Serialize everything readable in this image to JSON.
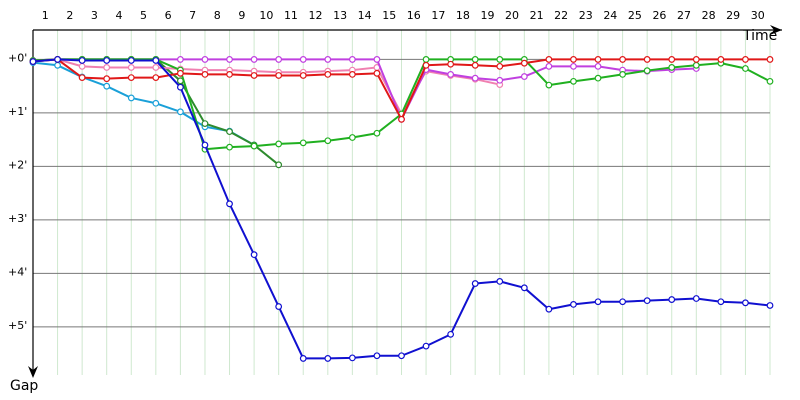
{
  "chart_data": {
    "type": "line",
    "x_label": "Time",
    "y_label": "Gap",
    "x": [
      0,
      1,
      2,
      3,
      4,
      5,
      6,
      7,
      8,
      9,
      10,
      11,
      12,
      13,
      14,
      15,
      16,
      17,
      18,
      19,
      20,
      21,
      22,
      23,
      24,
      25,
      26,
      27,
      28,
      29,
      30
    ],
    "xlim": [
      0,
      30
    ],
    "xticks": [
      1,
      2,
      3,
      4,
      5,
      6,
      7,
      8,
      9,
      10,
      11,
      12,
      13,
      14,
      15,
      16,
      17,
      18,
      19,
      20,
      21,
      22,
      23,
      24,
      25,
      26,
      27,
      28,
      29,
      30
    ],
    "ylim": [
      -0.55,
      5.9
    ],
    "yticks": [
      {
        "value": 0,
        "label": "+0'"
      },
      {
        "value": 1,
        "label": "+1'"
      },
      {
        "value": 2,
        "label": "+2'"
      },
      {
        "value": 3,
        "label": "+3'"
      },
      {
        "value": 4,
        "label": "+4'"
      },
      {
        "value": 5,
        "label": "+5'"
      }
    ],
    "y_inverted": true,
    "grid": true,
    "series": [
      {
        "color": "#1aa0d8",
        "values": [
          0.06,
          0.11,
          0.33,
          0.5,
          0.72,
          0.82,
          0.98,
          1.26,
          1.34,
          1.6,
          null,
          null,
          null,
          null,
          null,
          null,
          null,
          null,
          null,
          null,
          null,
          null,
          null,
          null,
          null,
          null,
          null,
          null,
          null,
          null,
          null
        ]
      },
      {
        "color": "#2e8b2e",
        "values": [
          0.02,
          0,
          0,
          0,
          0,
          0,
          0.4,
          1.2,
          1.35,
          1.6,
          1.97,
          null,
          null,
          null,
          null,
          null,
          null,
          null,
          null,
          null,
          null,
          null,
          null,
          null,
          null,
          null,
          null,
          null,
          null,
          null,
          null
        ]
      },
      {
        "color": "#f080b0",
        "values": [
          0.04,
          0,
          0.13,
          0.15,
          0.15,
          0.15,
          0.18,
          0.2,
          0.2,
          0.22,
          0.24,
          0.24,
          0.22,
          0.2,
          0.15,
          1.02,
          0.22,
          0.3,
          0.37,
          0.47,
          null,
          null,
          null,
          null,
          null,
          null,
          null,
          null,
          null,
          null,
          null
        ]
      },
      {
        "color": "#c040e0",
        "values": [
          0.02,
          0,
          0,
          0,
          0,
          0,
          0,
          0,
          0,
          0,
          0,
          0,
          0,
          0,
          0,
          1.12,
          0.19,
          0.28,
          0.35,
          0.39,
          0.32,
          0.13,
          0.13,
          0.13,
          0.2,
          0.22,
          0.19,
          0.17,
          null,
          null,
          null
        ]
      },
      {
        "color": "#20b020",
        "values": [
          0.02,
          0,
          0,
          0,
          0,
          0,
          0.2,
          1.68,
          1.64,
          1.62,
          1.58,
          1.56,
          1.52,
          1.46,
          1.38,
          1.02,
          0,
          0,
          0,
          0,
          0,
          0.48,
          0.41,
          0.35,
          0.28,
          0.21,
          0.15,
          0.11,
          0.07,
          0.17,
          0.41
        ]
      },
      {
        "color": "#e01818",
        "values": [
          0.04,
          0,
          0.34,
          0.36,
          0.34,
          0.34,
          0.26,
          0.28,
          0.28,
          0.3,
          0.3,
          0.3,
          0.28,
          0.28,
          0.26,
          1.12,
          0.11,
          0.09,
          0.11,
          0.13,
          0.07,
          0,
          0,
          0,
          0,
          0,
          0,
          0,
          0,
          0,
          0
        ]
      },
      {
        "color": "#1010d0",
        "values": [
          0.04,
          0,
          0.02,
          0.02,
          0.02,
          0.02,
          0.52,
          1.6,
          2.7,
          3.65,
          4.62,
          5.59,
          5.59,
          5.58,
          5.54,
          5.54,
          5.36,
          5.14,
          4.19,
          4.15,
          4.27,
          4.67,
          4.58,
          4.53,
          4.53,
          4.51,
          4.49,
          4.47,
          4.53,
          4.55,
          4.6
        ]
      }
    ]
  }
}
